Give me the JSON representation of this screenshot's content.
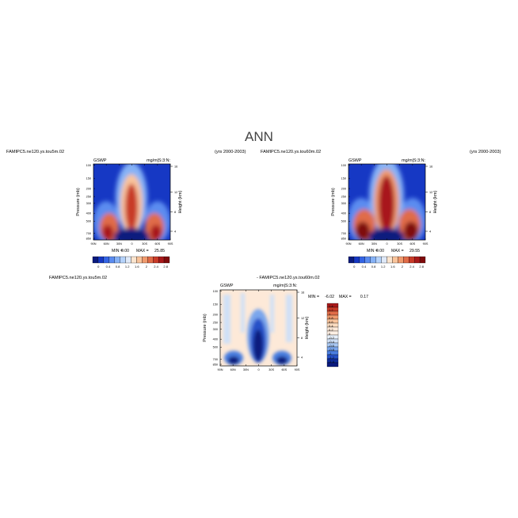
{
  "main_title": "ANN",
  "panels": [
    {
      "case_label": "FAMIPC5.ne120.ys.tou5m.02",
      "years": "(yrs 2000-2003)",
      "var_name": "GSWP",
      "units": "mg/m|S:3:N:",
      "stats": {
        "min_label": "MIN =",
        "min_value": "0.00",
        "max_label": "MAX =",
        "max_value": "25.85"
      }
    },
    {
      "case_label": "FAMIPC5.ne120.ys.tou60m.02",
      "years": "(yrs 2000-2003)",
      "var_name": "GSWP",
      "units": "mg/m|S:3:N:",
      "stats": {
        "min_label": "MIN =",
        "min_value": "0.00",
        "max_label": "MAX =",
        "max_value": "29.55"
      }
    }
  ],
  "diff_panel": {
    "left_label": "FAMIPC5.ne120.ys.tou5m.02",
    "title": "- FAMIPC5.ne120.ys.tou60m.02",
    "var_name": "GSWP",
    "units": "mg/m|S:3:N:",
    "stats": {
      "min_label": "MIN =",
      "min_value": "-6.02",
      "max_label": "MAX =",
      "max_value": "0.17"
    }
  },
  "chart_data": [
    {
      "type": "heatmap",
      "title": "FAMIPC5.ne120.ys.tou5m.02",
      "subtitle": "GSWP",
      "ylabel": "Pressure (mb)",
      "y2label": "Height (km)",
      "x_ticks": [
        "90N",
        "60N",
        "30N",
        "0",
        "30S",
        "60S",
        "90S"
      ],
      "y_ticks": [
        "100",
        "150",
        "200",
        "250",
        "300",
        "400",
        "500",
        "700",
        "850"
      ],
      "y_ticks_values": [
        100,
        150,
        200,
        250,
        300,
        400,
        500,
        700,
        850
      ],
      "y2_ticks": [
        "16",
        "12",
        "8",
        "4"
      ],
      "colorbar": {
        "labels": [
          "0",
          "0.4",
          "0.8",
          "1.2",
          "1.6",
          "2",
          "2.4",
          "2.8"
        ],
        "colors": [
          "#0a1a7e",
          "#1638c4",
          "#3464e4",
          "#5b8cf0",
          "#86b2f6",
          "#b5d2fa",
          "#dfe9f8",
          "#fbe5cf",
          "#f9c49c",
          "#f09b6e",
          "#e06c48",
          "#c83b28",
          "#a8191a",
          "#7f0a0b"
        ]
      },
      "min": 0.0,
      "max": 25.85
    },
    {
      "type": "heatmap",
      "title": "FAMIPC5.ne120.ys.tou60m.02",
      "subtitle": "GSWP",
      "ylabel": "Pressure (mb)",
      "y2label": "Height (km)",
      "x_ticks": [
        "90N",
        "60N",
        "30N",
        "0",
        "30S",
        "60S",
        "90S"
      ],
      "y_ticks": [
        "100",
        "150",
        "200",
        "250",
        "300",
        "400",
        "500",
        "700",
        "850"
      ],
      "y_ticks_values": [
        100,
        150,
        200,
        250,
        300,
        400,
        500,
        700,
        850
      ],
      "y2_ticks": [
        "16",
        "12",
        "8",
        "4"
      ],
      "colorbar": {
        "labels": [
          "0",
          "0.4",
          "0.8",
          "1.2",
          "1.6",
          "2",
          "2.4",
          "2.8"
        ],
        "colors": [
          "#0a1a7e",
          "#1638c4",
          "#3464e4",
          "#5b8cf0",
          "#86b2f6",
          "#b5d2fa",
          "#dfe9f8",
          "#fbe5cf",
          "#f9c49c",
          "#f09b6e",
          "#e06c48",
          "#c83b28",
          "#a8191a",
          "#7f0a0b"
        ]
      },
      "min": 0.0,
      "max": 29.55
    },
    {
      "type": "heatmap",
      "title": "- FAMIPC5.ne120.ys.tou60m.02",
      "subtitle": "GSWP",
      "ylabel": "Pressure (mb)",
      "y2label": "Height (km)",
      "x_ticks": [
        "90N",
        "60N",
        "30N",
        "0",
        "30S",
        "60S",
        "90S"
      ],
      "y_ticks": [
        "100",
        "150",
        "200",
        "250",
        "300",
        "400",
        "500",
        "700",
        "850"
      ],
      "y_ticks_values": [
        100,
        150,
        200,
        250,
        300,
        400,
        500,
        700,
        850
      ],
      "y2_ticks": [
        "16",
        "12",
        "8",
        "4"
      ],
      "colorbar": {
        "labels": [
          "1.4",
          "1.2",
          "1",
          "0.8",
          "0.6",
          "0.4",
          "0.2",
          "0",
          "-0.2",
          "-0.4",
          "-0.6",
          "-0.8",
          "-1",
          "-1.2",
          "-1.4"
        ],
        "colors": [
          "#a8191a",
          "#c83b28",
          "#e06c48",
          "#f09b6e",
          "#f9c49c",
          "#fbdcc0",
          "#fde9d8",
          "#fff0e4",
          "#e6effa",
          "#cfe0f7",
          "#a9c8f3",
          "#7aa6ec",
          "#4a7ee0",
          "#2551c8",
          "#0e2c9a",
          "#0a1a7e"
        ],
        "orientation": "vertical"
      },
      "min": -6.02,
      "max": 0.17
    }
  ]
}
